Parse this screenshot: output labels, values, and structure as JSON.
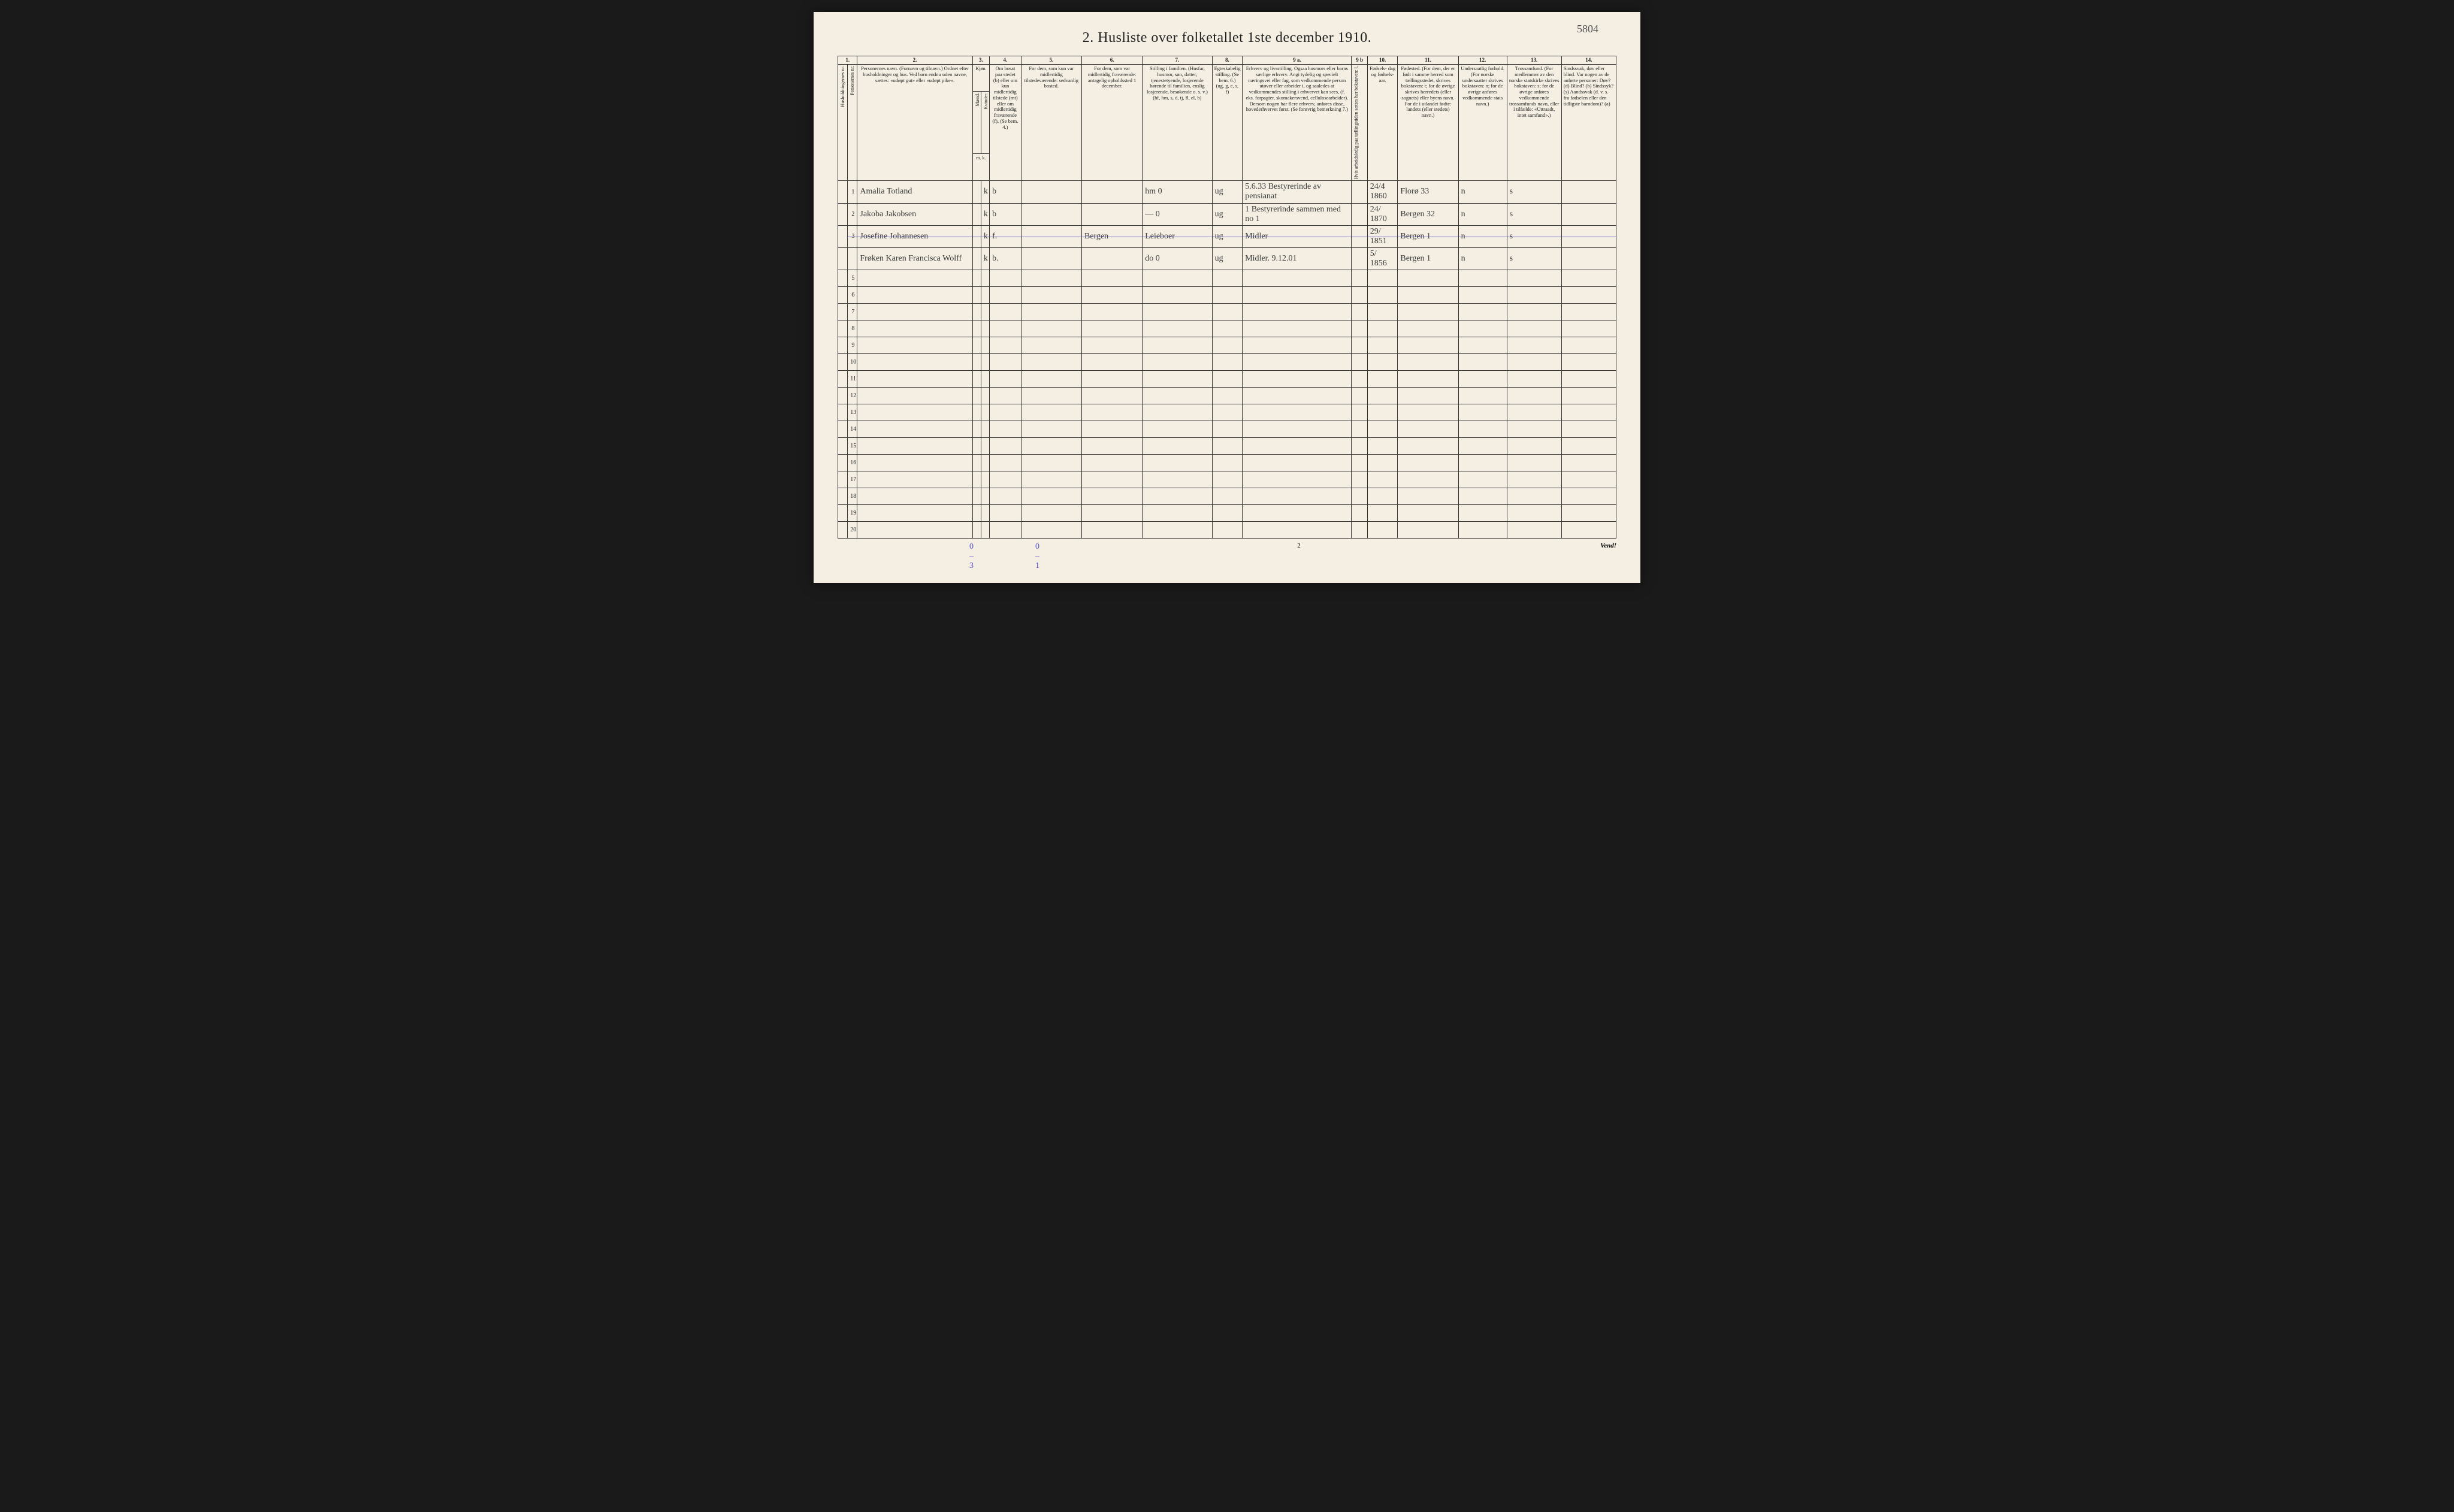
{
  "page_number_handwritten": "5804",
  "title": "2.  Husliste over folketallet 1ste december 1910.",
  "header": {
    "colnums": [
      "1.",
      "2.",
      "3.",
      "4.",
      "5.",
      "6.",
      "7.",
      "8.",
      "9 a.",
      "9 b",
      "10.",
      "11.",
      "12.",
      "13.",
      "14."
    ],
    "col1a": "Husholdningernes nr.",
    "col1b": "Personernes nr.",
    "col2": "Personernes navn.\n(Fornavn og tilnavn.)\nOrdnet efter husholdninger og hus.\nVed barn endnu uden navne, sættes: «udøpt gut» eller «udøpt pike».",
    "col3_top": "Kjøn.",
    "col3_m_label": "Mænd.",
    "col3_k_label": "Kvinder.",
    "col3_mk": "m.  k.",
    "col4": "Om bosat paa stedet (b) eller om kun midlertidig tilstede (mt) eller om midlertidig fraværende (f).\n(Se bem. 4.)",
    "col5": "For dem, som kun var midlertidig tilstedeværende:\nsedvanlig bosted.",
    "col6": "For dem, som var midlertidig fraværende:\nantagelig opholdssted 1 december.",
    "col7": "Stilling i familien.\n(Husfar, husmor, søn, datter, tjenestetyende, losjerende hørende til familien, enslig losjerende, besøkende o. s. v.)\n(hf, hm, s, d, tj, fl, el, b)",
    "col8": "Egteskabelig stilling.\n(Se bem. 6.)\n(ug, g, e, s, f)",
    "col9a": "Erhverv og livsstilling.\nOgsaa husmors eller barns særlige erhverv.\nAngi tydelig og specielt næringsvei eller fag, som vedkommende person utøver eller arbeider i, og saaledes at vedkommendes stilling i erhvervet kan sees, (f. eks. forpagter, skomakersvend, cellulosearbeider). Dersom nogen har flere erhverv, anføres disse, hovederhvervet først.\n(Se forøvrig bemerkning 7.)",
    "col9b": "Hvis arbeidsledig paa tællingstiden sættes her bokstaven: l.",
    "col10": "Fødsels-\ndag\nog\nfødsels-\naar.",
    "col11": "Fødested.\n(For dem, der er født i samme herred som tællingsstedet, skrives bokstaven: t; for de øvrige skrives herredets (eller sognets) eller byens navn. For de i utlandet fødte: landets (eller stedets) navn.)",
    "col12": "Undersaatlig forhold.\n(For norske undersaatter skrives bokstaven: n; for de øvrige anføres vedkommende stats navn.)",
    "col13": "Trossamfund.\n(For medlemmer av den norske statskirke skrives bokstaven: s; for de øvrige anføres vedkommende trossamfunds navn, eller i tilfælde: «Uttraadt, intet samfund».)",
    "col14": "Sindssvak, døv eller blind.\nVar nogen av de anførte personer:\nDøv?      (d)\nBlind?    (b)\nSindssyk? (s)\nAandssvak (d. v. s. fra fødselen eller den tidligste barndom)? (a)"
  },
  "rows": [
    {
      "n": "1",
      "name": "Amalia Totland",
      "m": "",
      "k": "k",
      "c4": "b",
      "c5": "",
      "c6": "",
      "c7": "hm                0",
      "c8": "ug",
      "c9a": "5.6.33 Bestyrerinde av pensianat",
      "c9b": "",
      "c10": "24/4 1860",
      "c11": "Florø   33",
      "c12": "n",
      "c13": "s",
      "c14": ""
    },
    {
      "n": "2",
      "name": "Jakoba Jakobsen",
      "m": "",
      "k": "k",
      "c4": "b",
      "c5": "",
      "c6": "",
      "c7": "—                0",
      "c8": "ug",
      "c9a": "1 Bestyrerinde sammen med no 1",
      "c9b": "",
      "c10": "24/ 1870",
      "c11": "Bergen   32",
      "c12": "n",
      "c13": "s",
      "c14": ""
    },
    {
      "n": "3",
      "name": "Josefine Johannesen",
      "m": "",
      "k": "k",
      "c4": "f.",
      "c5": "",
      "c6": "Bergen",
      "c7": "Leieboer",
      "c8": "ug",
      "c9a": "Midler",
      "c9b": "",
      "c10": "29/ 1851",
      "c11": "Bergen 1",
      "c12": "n",
      "c13": "s",
      "c14": "",
      "struck": true
    },
    {
      "n": "",
      "name": "Frøken Karen Francisca Wolff",
      "m": "",
      "k": "k",
      "c4": "b.",
      "c5": "",
      "c6": "",
      "c7": "do       0",
      "c8": "ug",
      "c9a": "Midler.  9.12.01",
      "c9b": "",
      "c10": "5/ 1856",
      "c11": "Bergen 1",
      "c12": "n",
      "c13": "s",
      "c14": ""
    },
    {
      "n": "5"
    },
    {
      "n": "6"
    },
    {
      "n": "7"
    },
    {
      "n": "8"
    },
    {
      "n": "9"
    },
    {
      "n": "10"
    },
    {
      "n": "11"
    },
    {
      "n": "12"
    },
    {
      "n": "13"
    },
    {
      "n": "14"
    },
    {
      "n": "15"
    },
    {
      "n": "16"
    },
    {
      "n": "17"
    },
    {
      "n": "18"
    },
    {
      "n": "19"
    },
    {
      "n": "20"
    }
  ],
  "footer": {
    "annotation_left1": "0 – 3",
    "annotation_left2": "0 – 1",
    "page_num_bottom": "2",
    "vend": "Vend!"
  }
}
